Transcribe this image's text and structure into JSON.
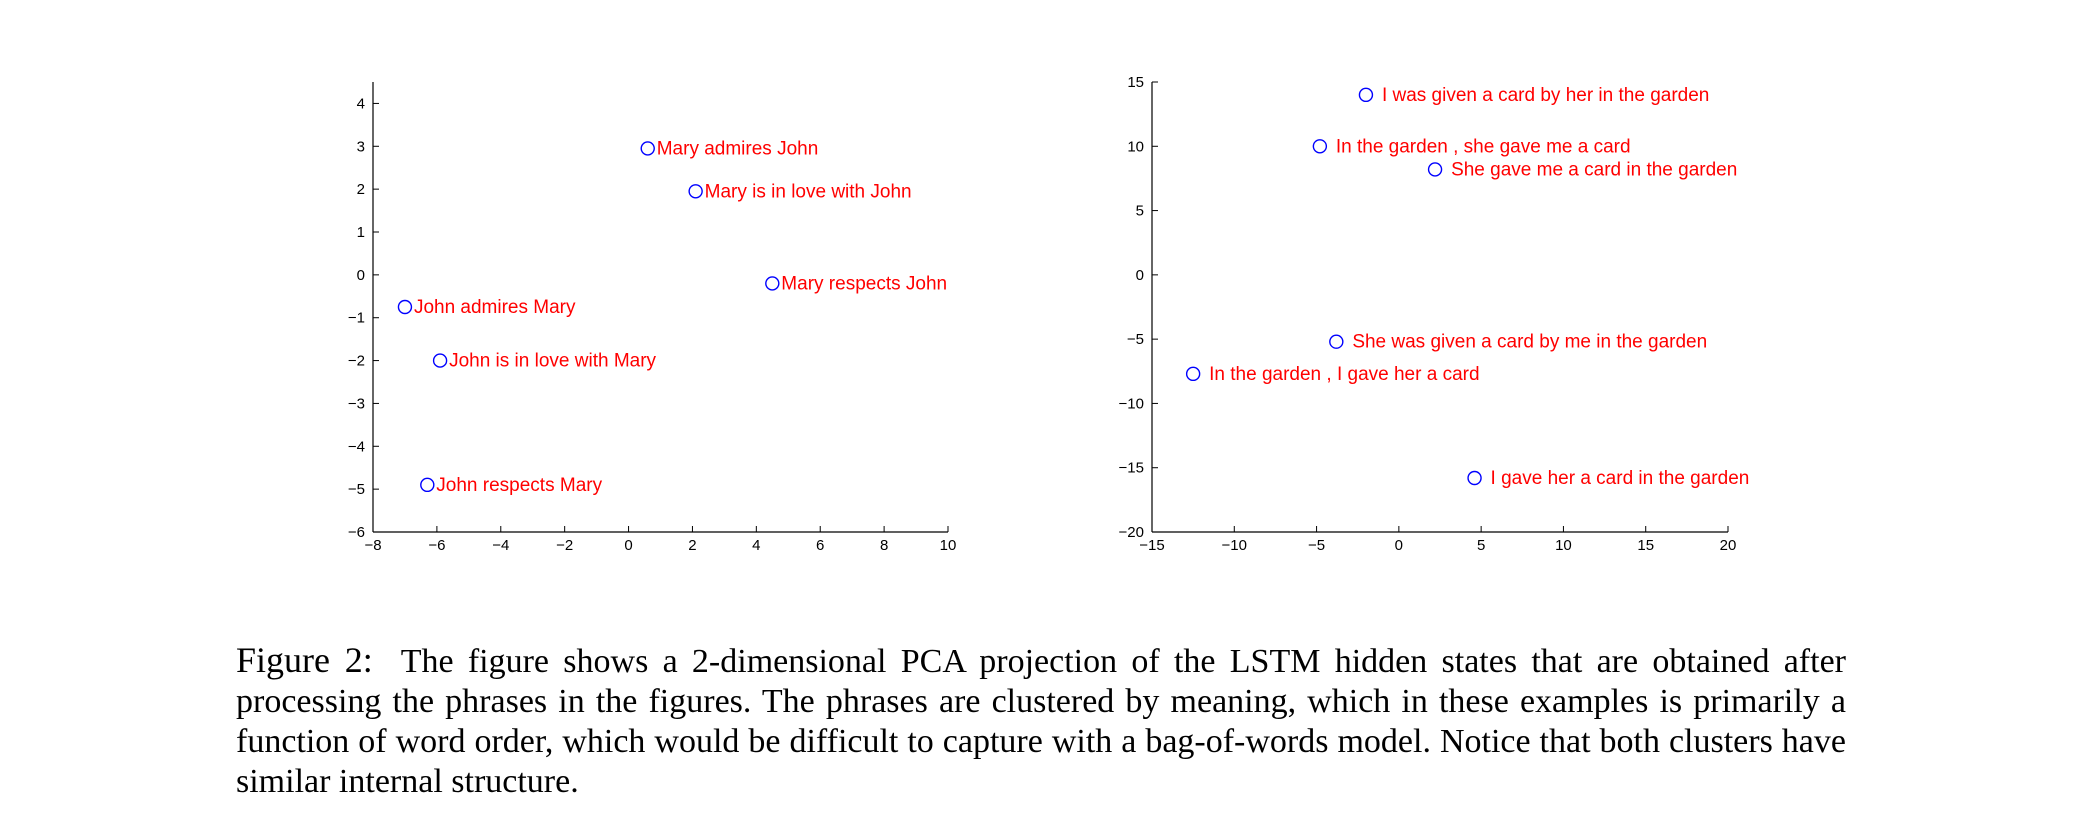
{
  "chart_data": [
    {
      "type": "scatter",
      "title": "",
      "xlabel": "",
      "ylabel": "",
      "xlim": [
        -8,
        10
      ],
      "ylim": [
        -6,
        4.5
      ],
      "xticks": [
        -8,
        -6,
        -4,
        -2,
        0,
        2,
        4,
        6,
        8,
        10
      ],
      "yticks": [
        -6,
        -5,
        -4,
        -3,
        -2,
        -1,
        0,
        1,
        2,
        3,
        4
      ],
      "grid": false,
      "marker_color": "#0000ff",
      "label_color": "#ff0000",
      "points": [
        {
          "label": "Mary admires John",
          "x": 0.6,
          "y": 2.95
        },
        {
          "label": "Mary is in love with John",
          "x": 2.1,
          "y": 1.95
        },
        {
          "label": "Mary respects John",
          "x": 4.5,
          "y": -0.2
        },
        {
          "label": "John admires Mary",
          "x": -7.0,
          "y": -0.75
        },
        {
          "label": "John is in love with Mary",
          "x": -5.9,
          "y": -2.0
        },
        {
          "label": "John respects Mary",
          "x": -6.3,
          "y": -4.9
        }
      ]
    },
    {
      "type": "scatter",
      "title": "",
      "xlabel": "",
      "ylabel": "",
      "xlim": [
        -15,
        20
      ],
      "ylim": [
        -20,
        15
      ],
      "xticks": [
        -15,
        -10,
        -5,
        0,
        5,
        10,
        15,
        20
      ],
      "yticks": [
        -20,
        -15,
        -10,
        -5,
        0,
        5,
        10,
        15
      ],
      "grid": false,
      "marker_color": "#0000ff",
      "label_color": "#ff0000",
      "points": [
        {
          "label": "I was given a card by her in the garden",
          "x": -2.0,
          "y": 14.0
        },
        {
          "label": "In the garden , she gave me a card",
          "x": -4.8,
          "y": 10.0
        },
        {
          "label": "She gave me a card in the garden",
          "x": 2.2,
          "y": 8.2
        },
        {
          "label": "She was given a card by me in the garden",
          "x": -3.8,
          "y": -5.2
        },
        {
          "label": "In the garden , I gave her a card",
          "x": -12.5,
          "y": -7.7
        },
        {
          "label": "I gave her a card in the garden",
          "x": 4.6,
          "y": -15.8
        }
      ]
    }
  ],
  "caption": {
    "label": "Figure 2:",
    "text": "The figure shows a 2-dimensional PCA projection of the LSTM hidden states that are obtained after processing the phrases in the figures. The phrases are clustered by meaning, which in these examples is primarily a function of word order, which would be difficult to capture with a bag-of-words model. Notice that both clusters have similar internal structure."
  }
}
